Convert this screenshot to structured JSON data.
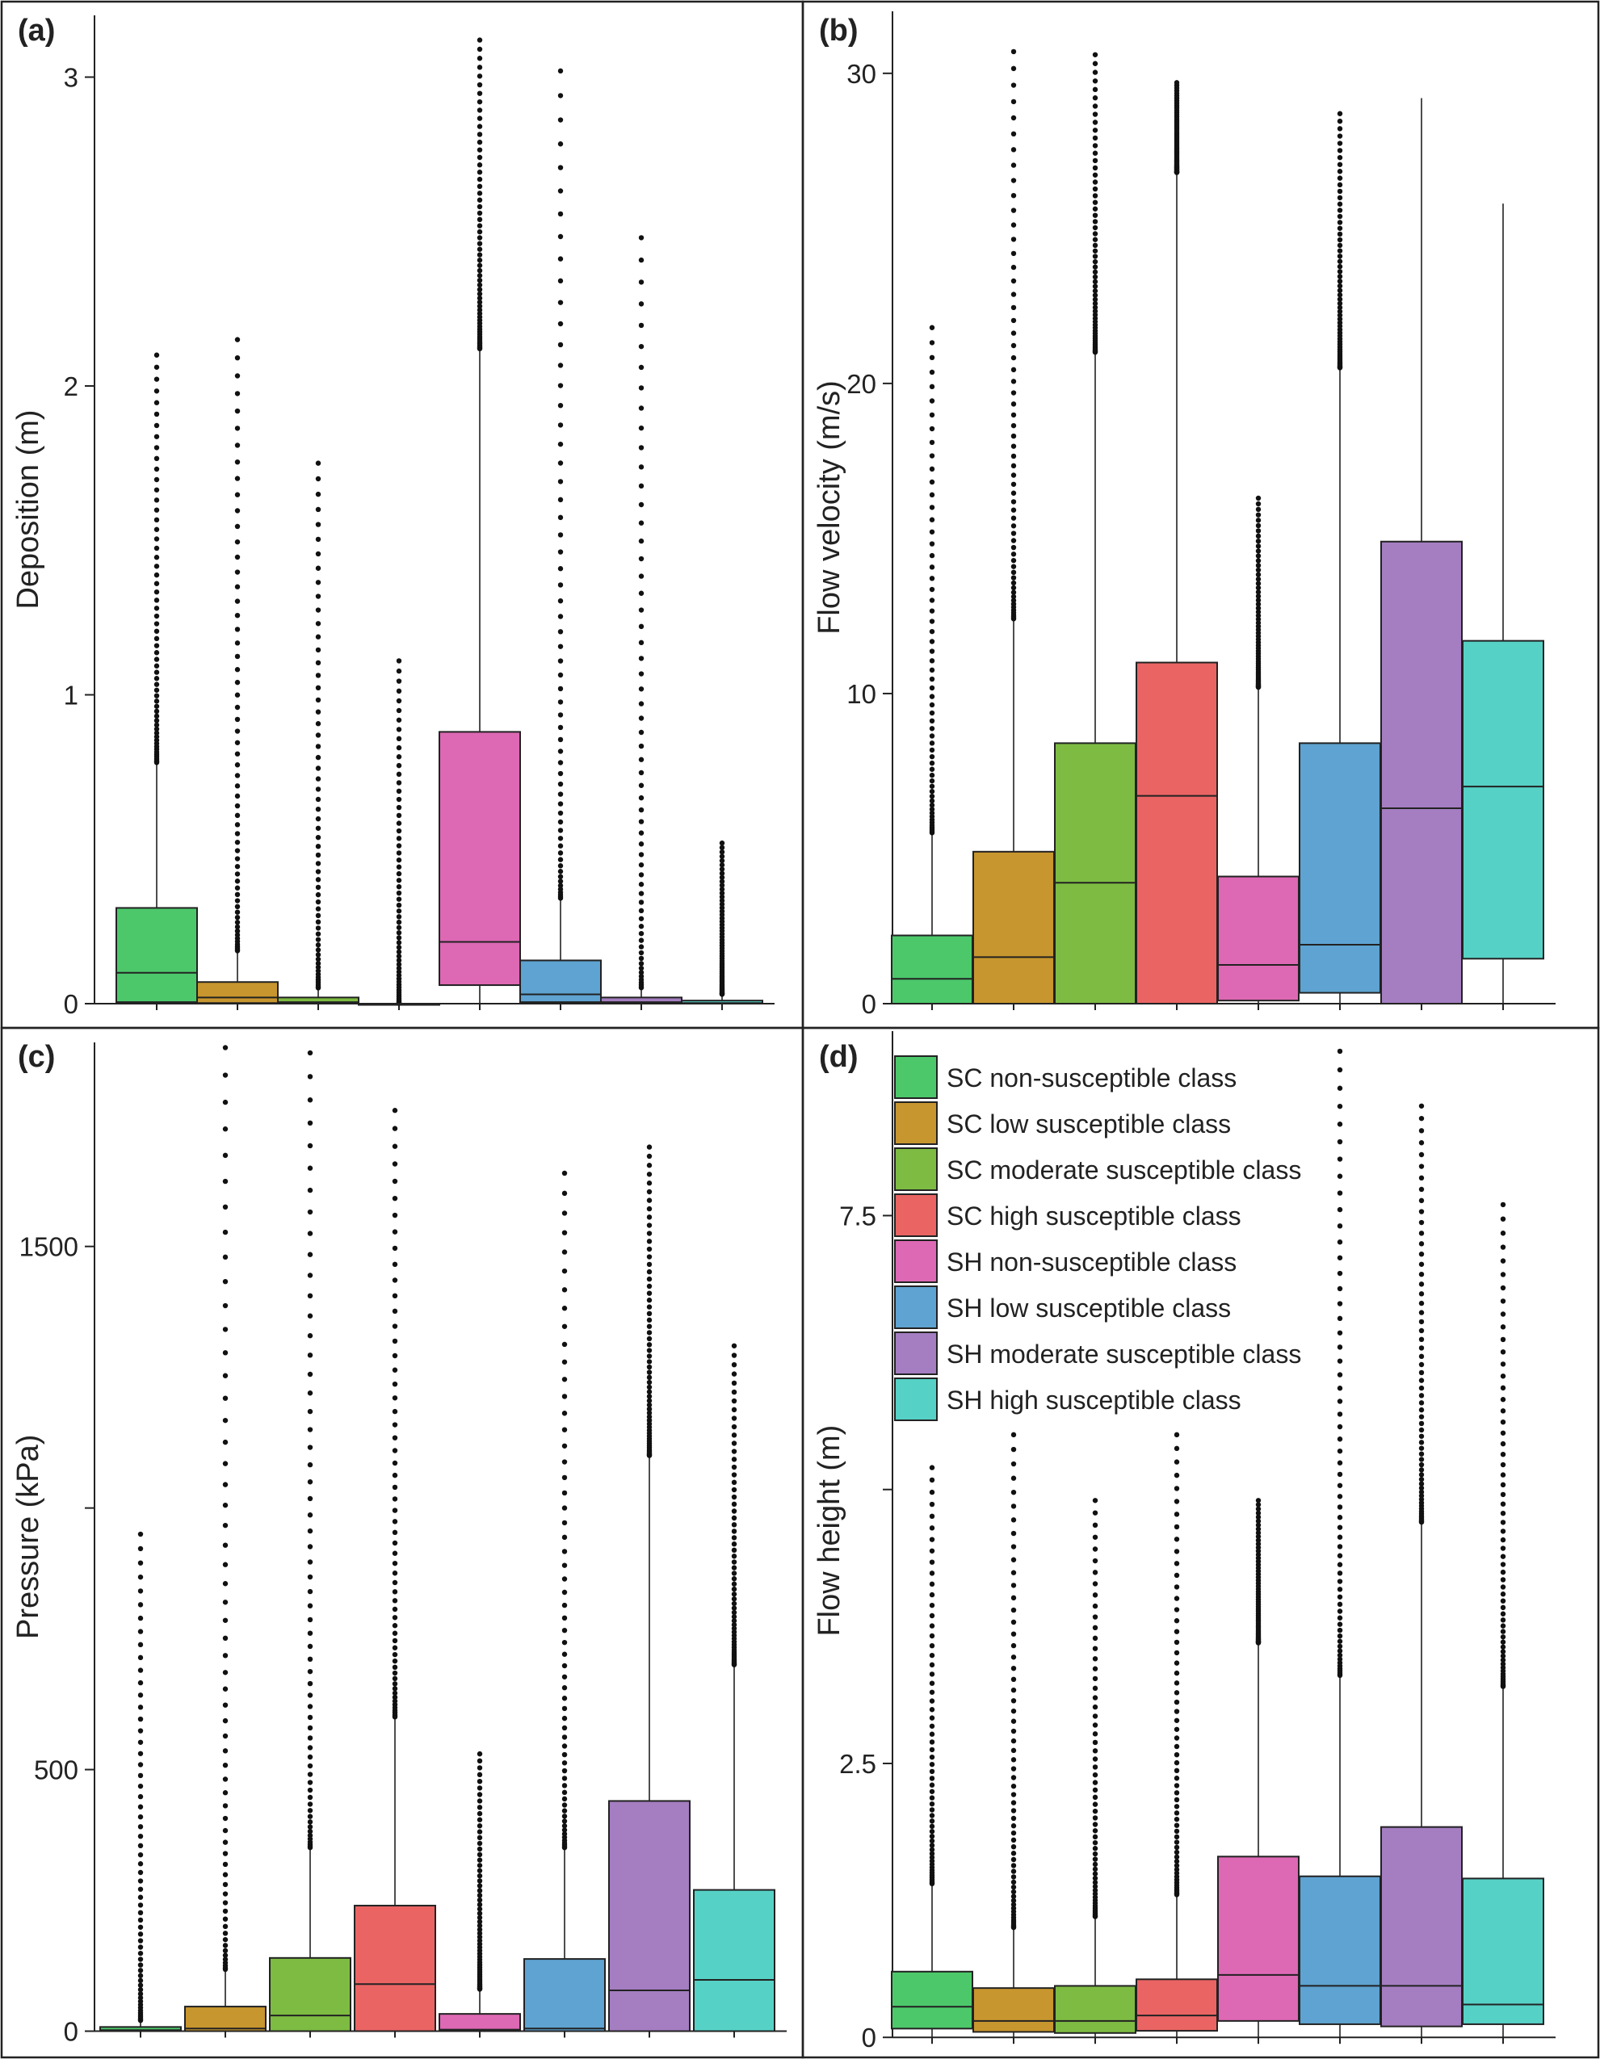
{
  "figure": {
    "title": ""
  },
  "series": [
    {
      "name": "SC non-susceptible class",
      "color": "#4cc86b"
    },
    {
      "name": "SC low susceptible class",
      "color": "#c8962e"
    },
    {
      "name": "SC moderate susceptible class",
      "color": "#7dbb42"
    },
    {
      "name": "SC high susceptible class",
      "color": "#ea6464"
    },
    {
      "name": "SH non-susceptible class",
      "color": "#dd68b4"
    },
    {
      "name": "SH low susceptible class",
      "color": "#5ea3d1"
    },
    {
      "name": "SH moderate susceptible class",
      "color": "#a47ec1"
    },
    {
      "name": "SH high susceptible class",
      "color": "#56d1c6"
    }
  ],
  "chart_data": [
    {
      "type": "boxplot",
      "panel": "(a)",
      "ylabel": "Deposition (m)",
      "xlabel": "",
      "ylim": [
        0,
        3.2
      ],
      "yticks": [
        0,
        1,
        2,
        3
      ],
      "ytick_labels": [
        "0",
        "1",
        "2",
        "3"
      ],
      "boxes": [
        {
          "q1": 0.005,
          "median": 0.1,
          "q3": 0.31,
          "whisker_low": 0,
          "whisker_high": 0.78,
          "outlier_max": 2.1
        },
        {
          "q1": 0.002,
          "median": 0.02,
          "q3": 0.07,
          "whisker_low": 0,
          "whisker_high": 0.17,
          "outlier_max": 2.15
        },
        {
          "q1": 0.0,
          "median": 0.005,
          "q3": 0.02,
          "whisker_low": 0,
          "whisker_high": 0.05,
          "outlier_max": 1.75
        },
        {
          "q1": 0.0,
          "median": 0.0,
          "q3": 0.0,
          "whisker_low": 0,
          "whisker_high": 0.0,
          "outlier_max": 1.11
        },
        {
          "q1": 0.06,
          "median": 0.2,
          "q3": 0.88,
          "whisker_low": 0,
          "whisker_high": 2.12,
          "outlier_max": 3.12
        },
        {
          "q1": 0.005,
          "median": 0.03,
          "q3": 0.14,
          "whisker_low": 0,
          "whisker_high": 0.34,
          "outlier_max": 3.02
        },
        {
          "q1": 0.0,
          "median": 0.005,
          "q3": 0.02,
          "whisker_low": 0,
          "whisker_high": 0.05,
          "outlier_max": 2.48
        },
        {
          "q1": 0.0,
          "median": 0.002,
          "q3": 0.01,
          "whisker_low": 0,
          "whisker_high": 0.03,
          "outlier_max": 0.52
        }
      ]
    },
    {
      "type": "boxplot",
      "panel": "(b)",
      "ylabel": "Flow velocity (m/s)",
      "xlabel": "",
      "ylim": [
        0,
        32
      ],
      "yticks": [
        0,
        10,
        20,
        30
      ],
      "ytick_labels": [
        "0",
        "10",
        "20",
        "30"
      ],
      "boxes": [
        {
          "q1": 0,
          "median": 0.8,
          "q3": 2.2,
          "whisker_low": 0,
          "whisker_high": 5.5,
          "outlier_max": 21.8
        },
        {
          "q1": 0,
          "median": 1.5,
          "q3": 4.9,
          "whisker_low": 0,
          "whisker_high": 12.4,
          "outlier_max": 30.7
        },
        {
          "q1": 0,
          "median": 3.9,
          "q3": 8.4,
          "whisker_low": 0,
          "whisker_high": 21.0,
          "outlier_max": 30.6
        },
        {
          "q1": 0,
          "median": 6.7,
          "q3": 11.0,
          "whisker_low": 0,
          "whisker_high": 26.8,
          "outlier_max": 29.7
        },
        {
          "q1": 0.1,
          "median": 1.25,
          "q3": 4.1,
          "whisker_low": 0,
          "whisker_high": 10.2,
          "outlier_max": 16.3
        },
        {
          "q1": 0.35,
          "median": 1.9,
          "q3": 8.4,
          "whisker_low": 0,
          "whisker_high": 20.5,
          "outlier_max": 28.7
        },
        {
          "q1": 0,
          "median": 6.3,
          "q3": 14.9,
          "whisker_low": 0,
          "whisker_high": 29.2,
          "outlier_max": 29.2
        },
        {
          "q1": 1.45,
          "median": 7.0,
          "q3": 11.7,
          "whisker_low": 0,
          "whisker_high": 25.8,
          "outlier_max": 25.8
        }
      ]
    },
    {
      "type": "boxplot",
      "panel": "(c)",
      "ylabel": "Pressure (kPa)",
      "xlabel": "",
      "ylim": [
        -10,
        1890
      ],
      "yticks": [
        0,
        500,
        1000,
        1500
      ],
      "ytick_labels": [
        "0",
        "500",
        "",
        "1500"
      ],
      "boxes": [
        {
          "q1": 0,
          "median": 2,
          "q3": 8,
          "whisker_low": 0,
          "whisker_high": 20,
          "outlier_max": 950
        },
        {
          "q1": 0,
          "median": 5,
          "q3": 47,
          "whisker_low": 0,
          "whisker_high": 117,
          "outlier_max": 1880
        },
        {
          "q1": 0,
          "median": 30,
          "q3": 140,
          "whisker_low": 0,
          "whisker_high": 350,
          "outlier_max": 1870
        },
        {
          "q1": 0,
          "median": 90,
          "q3": 240,
          "whisker_low": 0,
          "whisker_high": 600,
          "outlier_max": 1760
        },
        {
          "q1": 0,
          "median": 3,
          "q3": 33,
          "whisker_low": 0,
          "whisker_high": 80,
          "outlier_max": 530
        },
        {
          "q1": 0,
          "median": 5,
          "q3": 138,
          "whisker_low": 0,
          "whisker_high": 350,
          "outlier_max": 1640
        },
        {
          "q1": 0,
          "median": 78,
          "q3": 440,
          "whisker_low": 0,
          "whisker_high": 1100,
          "outlier_max": 1690
        },
        {
          "q1": 0,
          "median": 98,
          "q3": 270,
          "whisker_low": 0,
          "whisker_high": 700,
          "outlier_max": 1310
        }
      ]
    },
    {
      "type": "boxplot",
      "panel": "(d)",
      "ylabel": "Flow height (m)",
      "xlabel": "",
      "ylim": [
        -0.05,
        9.25
      ],
      "yticks": [
        0,
        2.5,
        5,
        7.5
      ],
      "ytick_labels": [
        "0",
        "2.5",
        "",
        "7.5"
      ],
      "boxes": [
        {
          "q1": 0.08,
          "median": 0.28,
          "q3": 0.6,
          "whisker_low": 0,
          "whisker_high": 1.4,
          "outlier_max": 5.2
        },
        {
          "q1": 0.05,
          "median": 0.15,
          "q3": 0.45,
          "whisker_low": 0,
          "whisker_high": 1.0,
          "outlier_max": 5.5
        },
        {
          "q1": 0.04,
          "median": 0.15,
          "q3": 0.47,
          "whisker_low": 0,
          "whisker_high": 1.1,
          "outlier_max": 4.9
        },
        {
          "q1": 0.06,
          "median": 0.2,
          "q3": 0.53,
          "whisker_low": 0,
          "whisker_high": 1.3,
          "outlier_max": 5.5
        },
        {
          "q1": 0.15,
          "median": 0.57,
          "q3": 1.65,
          "whisker_low": 0,
          "whisker_high": 3.6,
          "outlier_max": 4.9
        },
        {
          "q1": 0.12,
          "median": 0.47,
          "q3": 1.47,
          "whisker_low": 0,
          "whisker_high": 3.3,
          "outlier_max": 9.0
        },
        {
          "q1": 0.1,
          "median": 0.47,
          "q3": 1.92,
          "whisker_low": 0,
          "whisker_high": 4.7,
          "outlier_max": 8.5
        },
        {
          "q1": 0.12,
          "median": 0.3,
          "q3": 1.45,
          "whisker_low": 0,
          "whisker_high": 3.2,
          "outlier_max": 7.6
        }
      ],
      "legend": {
        "position": "top-left"
      }
    }
  ]
}
